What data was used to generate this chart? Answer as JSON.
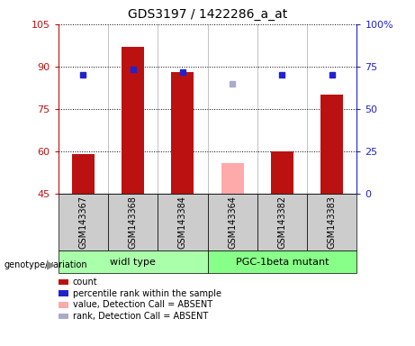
{
  "title": "GDS3197 / 1422286_a_at",
  "samples": [
    "GSM143367",
    "GSM143368",
    "GSM143384",
    "GSM143364",
    "GSM143382",
    "GSM143383"
  ],
  "count_values": [
    59,
    97,
    88,
    null,
    60,
    80
  ],
  "rank_values": [
    87,
    89,
    88,
    null,
    87,
    87
  ],
  "absent_value": [
    null,
    null,
    null,
    56,
    null,
    null
  ],
  "absent_rank": [
    null,
    null,
    null,
    84,
    null,
    null
  ],
  "ylim_left": [
    45,
    105
  ],
  "ylim_right": [
    0,
    100
  ],
  "yticks_left": [
    45,
    60,
    75,
    90,
    105
  ],
  "yticks_right": [
    0,
    25,
    50,
    75,
    100
  ],
  "ytick_labels_right": [
    "0",
    "25",
    "50",
    "75",
    "100%"
  ],
  "count_color": "#bb1111",
  "rank_color": "#2222cc",
  "absent_value_color": "#ffaaaa",
  "absent_rank_color": "#aaaacc",
  "bar_bottom": 45,
  "bar_width": 0.45,
  "sample_bg": "#cccccc",
  "group_info": [
    {
      "label": "widl type",
      "indices": [
        0,
        1,
        2
      ],
      "color": "#aaffaa"
    },
    {
      "label": "PGC-1beta mutant",
      "indices": [
        3,
        4,
        5
      ],
      "color": "#88ff88"
    }
  ],
  "legend_items": [
    {
      "label": "count",
      "color": "#bb1111"
    },
    {
      "label": "percentile rank within the sample",
      "color": "#2222cc"
    },
    {
      "label": "value, Detection Call = ABSENT",
      "color": "#ffaaaa"
    },
    {
      "label": "rank, Detection Call = ABSENT",
      "color": "#aaaacc"
    }
  ]
}
